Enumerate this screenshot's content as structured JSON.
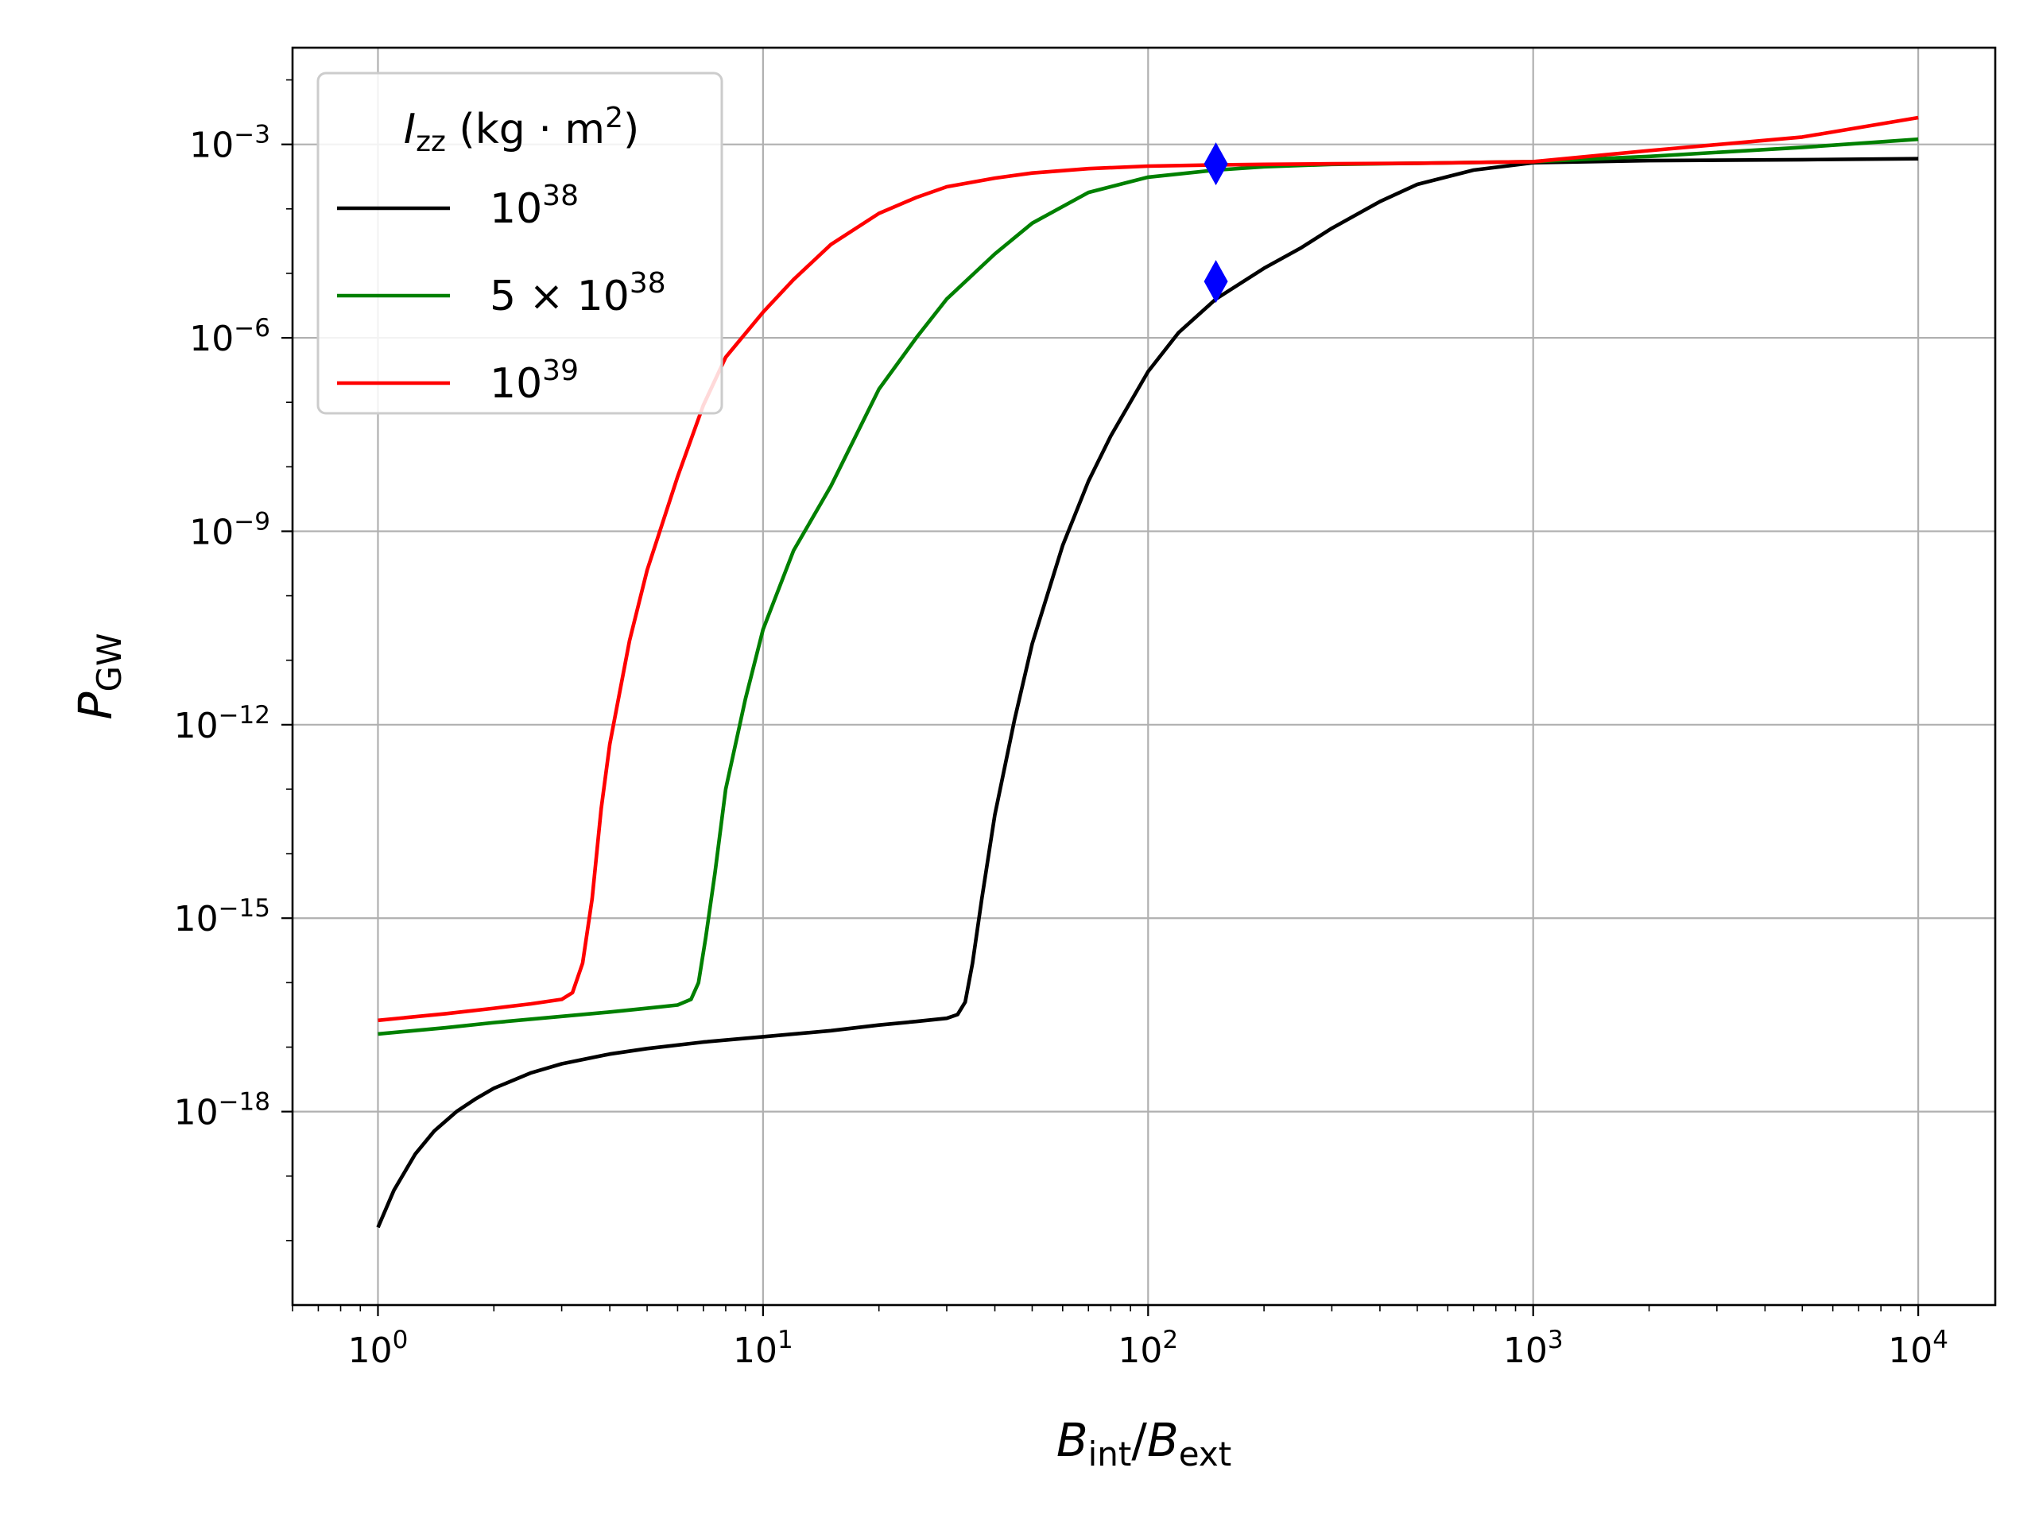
{
  "chart_data": {
    "type": "line",
    "xscale": "log",
    "yscale": "log",
    "xlim": [
      0.6,
      15849
    ],
    "ylim": [
      1e-21,
      0.0316
    ],
    "grid": true,
    "legend_position": "top-left",
    "xlabel": {
      "base": "B",
      "sub1": "int",
      "slash": "/",
      "base2": "B",
      "sub2": "ext"
    },
    "ylabel": {
      "base": "P",
      "sub": "GW"
    },
    "x_ticks": [
      {
        "value": 1,
        "base": "10",
        "exp": "0"
      },
      {
        "value": 10,
        "base": "10",
        "exp": "1"
      },
      {
        "value": 100,
        "base": "10",
        "exp": "2"
      },
      {
        "value": 1000,
        "base": "10",
        "exp": "3"
      },
      {
        "value": 10000,
        "base": "10",
        "exp": "4"
      }
    ],
    "y_ticks": [
      {
        "value": 0.001,
        "base": "10",
        "exp": "−3"
      },
      {
        "value": 1e-06,
        "base": "10",
        "exp": "−6"
      },
      {
        "value": 1e-09,
        "base": "10",
        "exp": "−9"
      },
      {
        "value": 1e-12,
        "base": "10",
        "exp": "−12"
      },
      {
        "value": 1e-15,
        "base": "10",
        "exp": "−15"
      },
      {
        "value": 1e-18,
        "base": "10",
        "exp": "−18"
      }
    ],
    "legend": {
      "title": {
        "base": "I",
        "sub": "zz",
        "rest": " (kg · m",
        "sup": "2",
        "close": ")"
      },
      "entries": [
        {
          "base": "10",
          "sup": "38",
          "color": "#000000"
        },
        {
          "base": "5 × 10",
          "sup": "38",
          "color": "#008000"
        },
        {
          "base": "10",
          "sup": "39",
          "color": "#ff0000"
        }
      ]
    },
    "series": [
      {
        "color": "#000000",
        "x": [
          1,
          1.1,
          1.25,
          1.4,
          1.6,
          1.8,
          2,
          2.5,
          3,
          4,
          5,
          7,
          10,
          15,
          20,
          25,
          30,
          32,
          33.5,
          35,
          37,
          40,
          45,
          50,
          60,
          70,
          80,
          100,
          120,
          150,
          200,
          250,
          300,
          400,
          500,
          700,
          1000,
          2000,
          5000,
          10000
        ],
        "y": [
          1.6e-20,
          6e-20,
          2.2e-19,
          5e-19,
          1e-18,
          1.6e-18,
          2.3e-18,
          4e-18,
          5.5e-18,
          7.8e-18,
          9.5e-18,
          1.2e-17,
          1.45e-17,
          1.8e-17,
          2.2e-17,
          2.5e-17,
          2.8e-17,
          3.2e-17,
          5e-17,
          2e-16,
          2e-15,
          4e-14,
          1.2e-12,
          1.8e-11,
          6e-10,
          6e-09,
          3e-08,
          3e-07,
          1.2e-06,
          4e-06,
          1.2e-05,
          2.5e-05,
          5e-05,
          0.00013,
          0.00024,
          0.0004,
          0.00052,
          0.00056,
          0.00058,
          0.0006
        ]
      },
      {
        "color": "#008000",
        "x": [
          1,
          1.5,
          2,
          3,
          4,
          5,
          6,
          6.5,
          6.8,
          7.1,
          7.5,
          8,
          9,
          10,
          12,
          15,
          20,
          25,
          30,
          40,
          50,
          70,
          100,
          150,
          200,
          300,
          500,
          1000,
          2000,
          5000,
          10000
        ],
        "y": [
          1.6e-17,
          2e-17,
          2.4e-17,
          3e-17,
          3.5e-17,
          4e-17,
          4.5e-17,
          5.5e-17,
          1e-16,
          5e-16,
          5e-15,
          1e-13,
          2.5e-12,
          3e-11,
          5e-10,
          5e-09,
          1.6e-07,
          1e-06,
          4e-06,
          2e-05,
          6e-05,
          0.00018,
          0.00031,
          0.0004,
          0.00045,
          0.00049,
          0.00051,
          0.00054,
          0.00065,
          0.0009,
          0.0012
        ]
      },
      {
        "color": "#ff0000",
        "x": [
          1,
          1.5,
          2,
          2.5,
          3,
          3.2,
          3.4,
          3.6,
          3.8,
          4,
          4.5,
          5,
          6,
          7,
          8,
          10,
          12,
          15,
          20,
          25,
          30,
          40,
          50,
          70,
          100,
          150,
          200,
          300,
          500,
          1000,
          2000,
          5000,
          10000
        ],
        "y": [
          2.6e-17,
          3.3e-17,
          4e-17,
          4.7e-17,
          5.5e-17,
          7e-17,
          2e-16,
          2e-15,
          5e-14,
          5e-13,
          2e-11,
          2.5e-10,
          7e-09,
          9e-08,
          5e-07,
          2.5e-06,
          8e-06,
          2.8e-05,
          8.5e-05,
          0.00015,
          0.00022,
          0.0003,
          0.00036,
          0.00042,
          0.00046,
          0.00048,
          0.00049,
          0.0005,
          0.00051,
          0.00054,
          0.0008,
          0.0013,
          0.0026
        ]
      }
    ],
    "markers": [
      {
        "x": 150,
        "y": 0.0005,
        "shape": "diamond",
        "color": "#0000ff"
      },
      {
        "x": 150,
        "y": 7.5e-06,
        "shape": "diamond",
        "color": "#0000ff"
      }
    ]
  }
}
